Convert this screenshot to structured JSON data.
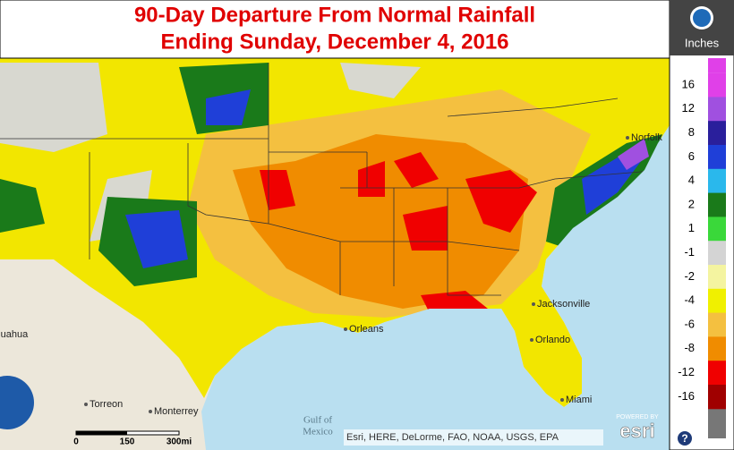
{
  "header": {
    "title_lines": [
      "90-Day Departure From Normal Rainfall",
      "Ending Sunday, December 4, 2016"
    ]
  },
  "legend": {
    "title": "Inches",
    "items": [
      {
        "label": "16",
        "color": "#e040e8"
      },
      {
        "label": "12",
        "color": "#a050e0"
      },
      {
        "label": "8",
        "color": "#2a1f9c"
      },
      {
        "label": "6",
        "color": "#1f3fd8"
      },
      {
        "label": "4",
        "color": "#2ab8ec"
      },
      {
        "label": "2",
        "color": "#1a7a1a"
      },
      {
        "label": "1",
        "color": "#3ad83a"
      },
      {
        "label": "-1",
        "color": "#d4d4d4"
      },
      {
        "label": "-2",
        "color": "#f4f4a0"
      },
      {
        "label": "-4",
        "color": "#f0f000"
      },
      {
        "label": "-6",
        "color": "#f4c040"
      },
      {
        "label": "-8",
        "color": "#f08c00"
      },
      {
        "label": "-12",
        "color": "#f00000"
      },
      {
        "label": "-16",
        "color": "#a00000"
      }
    ]
  },
  "map": {
    "places": [
      "Jacksonville",
      "Orlando",
      "Miami",
      "Orleans",
      "Norfolk",
      "Chihuahua",
      "Torreon",
      "Monterrey"
    ],
    "water": [
      "Gulf of",
      "Mexico"
    ]
  },
  "scale_bar": {
    "labels": [
      "0",
      "150",
      "300mi"
    ]
  },
  "attribution": "Esri, HERE, DeLorme, FAO, NOAA, USGS, EPA",
  "esri": {
    "powered": "POWERED BY",
    "logo": "esri"
  },
  "help": "?"
}
